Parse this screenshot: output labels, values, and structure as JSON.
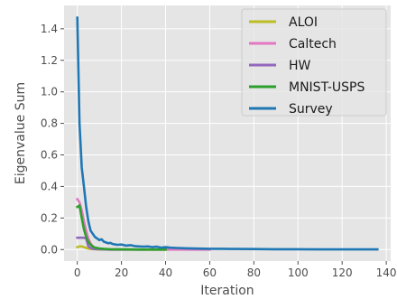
{
  "chart_data": {
    "type": "line",
    "title": "",
    "xlabel": "Iteration",
    "ylabel": "Eigenvalue Sum",
    "xlim": [
      -6,
      142
    ],
    "ylim": [
      -0.073,
      1.548
    ],
    "xticks": [
      0,
      20,
      40,
      60,
      80,
      100,
      120,
      140
    ],
    "yticks": [
      0.0,
      0.2,
      0.4,
      0.6,
      0.8,
      1.0,
      1.2,
      1.4
    ],
    "xtick_labels": [
      "0",
      "20",
      "40",
      "60",
      "80",
      "100",
      "120",
      "140"
    ],
    "ytick_labels": [
      "0.0",
      "0.2",
      "0.4",
      "0.6",
      "0.8",
      "1.0",
      "1.2",
      "1.4"
    ],
    "grid": true,
    "legend_position": "top-right",
    "background_color": "#e5e5e5",
    "series": [
      {
        "name": "ALOI",
        "color": "#bcbd22",
        "x": [
          0,
          1,
          2,
          3,
          4,
          5,
          6,
          7,
          8,
          10,
          12,
          15,
          20,
          30,
          40
        ],
        "y": [
          0.015,
          0.02,
          0.02,
          0.015,
          0.01,
          0.006,
          0.004,
          0.003,
          0.002,
          0.001,
          0.001,
          0.0,
          0.0,
          0.0,
          0.0
        ]
      },
      {
        "name": "Caltech",
        "color": "#e377c2",
        "x": [
          0,
          1,
          2,
          3,
          4,
          5,
          6,
          7,
          8,
          10,
          12,
          15,
          20,
          30,
          40,
          60
        ],
        "y": [
          0.32,
          0.3,
          0.25,
          0.18,
          0.12,
          0.07,
          0.04,
          0.02,
          0.012,
          0.006,
          0.004,
          0.002,
          0.001,
          0.0,
          0.0,
          0.0
        ]
      },
      {
        "name": "HW",
        "color": "#9467bd",
        "x": [
          0,
          1,
          2,
          3,
          4,
          5,
          6,
          7,
          8,
          10,
          12,
          15,
          20,
          30
        ],
        "y": [
          0.075,
          0.075,
          0.075,
          0.075,
          0.07,
          0.02,
          0.01,
          0.005,
          0.003,
          0.002,
          0.001,
          0.0,
          0.0,
          0.0
        ]
      },
      {
        "name": "MNIST-USPS",
        "color": "#2ca02c",
        "x": [
          0,
          1,
          2,
          3,
          4,
          5,
          6,
          7,
          8,
          10,
          12,
          15,
          20,
          30,
          40
        ],
        "y": [
          0.27,
          0.28,
          0.2,
          0.13,
          0.08,
          0.05,
          0.03,
          0.02,
          0.012,
          0.007,
          0.004,
          0.002,
          0.001,
          0.0,
          0.0
        ]
      },
      {
        "name": "Survey",
        "color": "#1f77b4",
        "x": [
          0,
          1,
          2,
          3,
          4,
          5,
          6,
          7,
          8,
          9,
          10,
          11,
          12,
          13,
          14,
          15,
          16,
          18,
          20,
          22,
          24,
          26,
          28,
          30,
          32,
          34,
          36,
          38,
          40,
          42,
          45,
          50,
          55,
          60,
          65,
          70,
          80,
          90,
          100,
          110,
          120,
          130,
          136
        ],
        "y": [
          1.47,
          0.8,
          0.52,
          0.4,
          0.27,
          0.18,
          0.12,
          0.1,
          0.08,
          0.07,
          0.06,
          0.065,
          0.05,
          0.045,
          0.04,
          0.042,
          0.035,
          0.03,
          0.032,
          0.025,
          0.028,
          0.022,
          0.02,
          0.018,
          0.02,
          0.015,
          0.018,
          0.012,
          0.015,
          0.012,
          0.01,
          0.008,
          0.006,
          0.005,
          0.005,
          0.004,
          0.003,
          0.002,
          0.002,
          0.001,
          0.001,
          0.001,
          0.001
        ]
      }
    ]
  }
}
